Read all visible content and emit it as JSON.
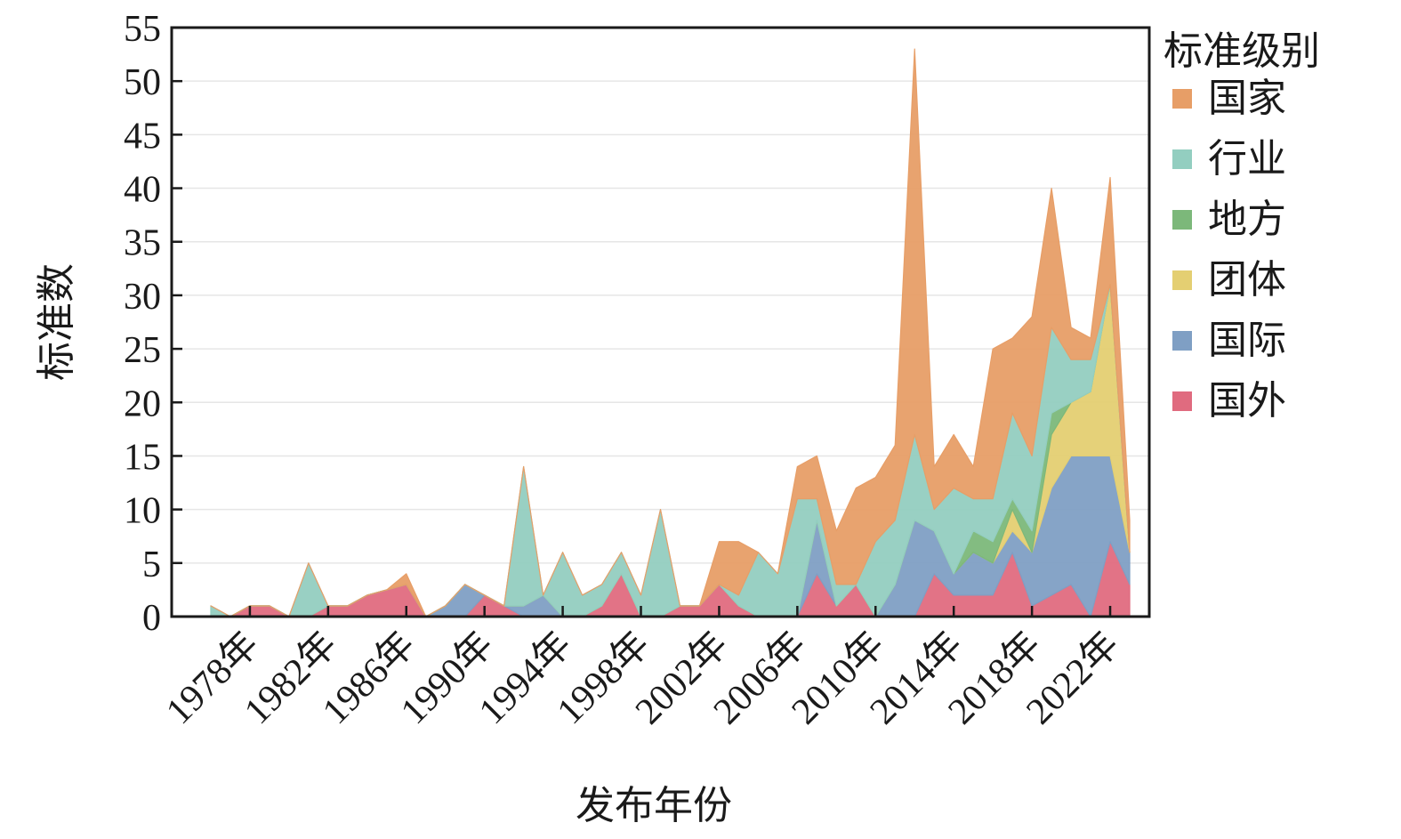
{
  "chart_data": {
    "type": "area",
    "stacked": true,
    "xlabel": "发布年份",
    "ylabel": "标准数",
    "ylim": [
      0,
      55
    ],
    "yticks": [
      0,
      5,
      10,
      15,
      20,
      25,
      30,
      35,
      40,
      45,
      50,
      55
    ],
    "xlim": [
      1974,
      2024
    ],
    "xticks": [
      1978,
      1982,
      1986,
      1990,
      1994,
      1998,
      2002,
      2006,
      2010,
      2014,
      2018,
      2022
    ],
    "xtick_labels": [
      "1978年",
      "1982年",
      "1986年",
      "1990年",
      "1994年",
      "1998年",
      "2002年",
      "2006年",
      "2010年",
      "2014年",
      "2018年",
      "2022年"
    ],
    "grid": "horizontal",
    "legend": {
      "title": "标准级别",
      "position": "right"
    },
    "x": [
      1976,
      1977,
      1978,
      1979,
      1980,
      1981,
      1982,
      1983,
      1984,
      1985,
      1986,
      1987,
      1988,
      1989,
      1990,
      1991,
      1992,
      1993,
      1994,
      1995,
      1996,
      1997,
      1998,
      1999,
      2000,
      2001,
      2002,
      2003,
      2004,
      2005,
      2006,
      2007,
      2008,
      2009,
      2010,
      2011,
      2012,
      2013,
      2014,
      2015,
      2016,
      2017,
      2018,
      2019,
      2020,
      2021,
      2022,
      2023
    ],
    "series": [
      {
        "name": "国外",
        "color": "#e06b7f",
        "values": [
          0,
          0,
          1,
          1,
          0,
          0,
          1,
          1,
          2,
          2.5,
          3,
          0,
          0,
          0,
          2,
          1,
          0,
          0,
          0,
          0,
          1,
          4,
          0,
          0,
          1,
          1,
          3,
          1,
          0,
          0,
          0,
          4,
          1,
          3,
          0,
          0,
          0,
          4,
          2,
          2,
          2,
          6,
          1,
          2,
          3,
          0,
          7,
          3
        ]
      },
      {
        "name": "国际",
        "color": "#7f9fc4",
        "values": [
          0,
          0,
          0,
          0,
          0,
          0,
          0,
          0,
          0,
          0,
          0,
          0,
          1,
          3,
          0,
          0,
          1,
          2,
          0,
          0,
          0,
          0,
          0,
          0,
          0,
          0,
          0,
          0,
          0,
          0,
          0,
          5,
          0,
          0,
          0,
          3,
          9,
          4,
          2,
          4,
          3,
          2,
          5,
          10,
          12,
          15,
          8,
          3
        ]
      },
      {
        "name": "团体",
        "color": "#e4cf72",
        "values": [
          0,
          0,
          0,
          0,
          0,
          0,
          0,
          0,
          0,
          0,
          0,
          0,
          0,
          0,
          0,
          0,
          0,
          0,
          0,
          0,
          0,
          0,
          0,
          0,
          0,
          0,
          0,
          0,
          0,
          0,
          0,
          0,
          0,
          0,
          0,
          0,
          0,
          0,
          0,
          0,
          0,
          2,
          0,
          5,
          5,
          6,
          16,
          0
        ]
      },
      {
        "name": "地方",
        "color": "#7cb87a",
        "values": [
          0,
          0,
          0,
          0,
          0,
          0,
          0,
          0,
          0,
          0,
          0,
          0,
          0,
          0,
          0,
          0,
          0,
          0,
          0,
          0,
          0,
          0,
          0,
          0,
          0,
          0,
          0,
          0,
          0,
          0,
          0,
          0,
          0,
          0,
          0,
          0,
          0,
          0,
          0,
          2,
          2,
          1,
          2,
          2,
          0,
          0,
          0,
          0
        ]
      },
      {
        "name": "行业",
        "color": "#93cec0",
        "values": [
          1,
          0,
          0,
          0,
          0,
          5,
          0,
          0,
          0,
          0,
          0,
          0,
          0,
          0,
          0,
          0,
          13,
          0,
          6,
          2,
          2,
          2,
          2,
          10,
          0,
          0,
          0,
          1,
          6,
          4,
          11,
          2,
          2,
          0,
          7,
          6,
          8,
          2,
          8,
          3,
          4,
          8,
          7,
          8,
          4,
          3,
          0,
          0
        ]
      },
      {
        "name": "国家",
        "color": "#e79e67",
        "values": [
          0,
          0,
          0,
          0,
          0,
          0,
          0,
          0,
          0,
          0,
          1,
          0,
          0,
          0,
          0,
          0,
          0,
          0,
          0,
          0,
          0,
          0,
          0,
          0,
          0,
          0,
          4,
          5,
          0,
          0,
          3,
          4,
          5,
          9,
          6,
          7,
          36,
          4,
          5,
          3,
          14,
          7,
          13,
          13,
          3,
          2,
          10,
          3
        ]
      }
    ]
  }
}
